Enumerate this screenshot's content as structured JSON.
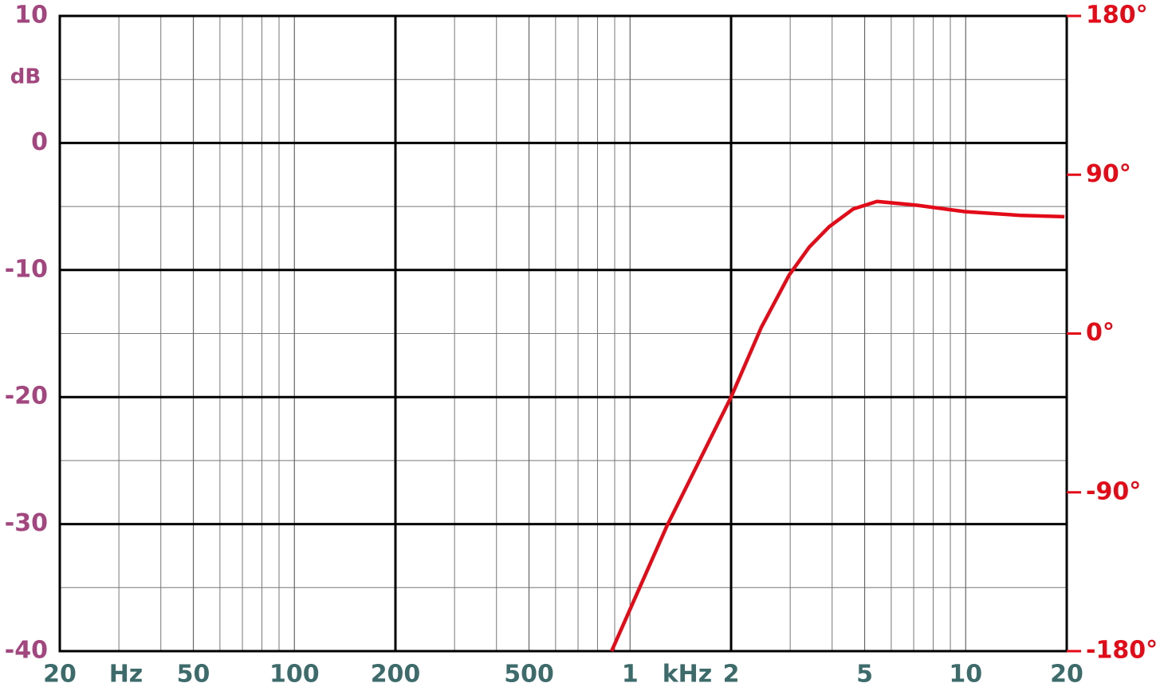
{
  "chart_data": {
    "type": "line",
    "y_label": "dB",
    "x_units": [
      "Hz",
      "kHz"
    ],
    "x": [
      881,
      1285,
      2000,
      2462,
      2978,
      3419,
      3918,
      4619,
      5442,
      7150,
      9920,
      14560,
      19680
    ],
    "values": [
      -40,
      -30.2,
      -20,
      -14.5,
      -10.4,
      -8.2,
      -6.6,
      -5.2,
      -4.6,
      -4.9,
      -5.4,
      -5.7,
      -5.8
    ],
    "color": "#e30b17",
    "log_x": true,
    "xlim": [
      20,
      20000
    ],
    "xticks": [
      20,
      50,
      100,
      200,
      500,
      {
        "value": 1000,
        "label": "1"
      },
      {
        "value": 2000,
        "label": "2"
      },
      {
        "value": 5000,
        "label": "5"
      },
      {
        "value": 10000,
        "label": "10"
      },
      {
        "value": 20000,
        "label": "20"
      }
    ],
    "x_minor_ticks": [
      30,
      40,
      60,
      70,
      80,
      90,
      300,
      400,
      600,
      700,
      800,
      900,
      3000,
      4000,
      6000,
      7000,
      8000,
      9000
    ],
    "x_major_grid": [
      200,
      2000
    ],
    "ylim": [
      -40,
      10
    ],
    "yticks": [
      10,
      0,
      -10,
      -20,
      -30,
      -40
    ],
    "y_minor_ticks": [
      5,
      -5,
      -15,
      -25,
      -35
    ],
    "y2lim": [
      -180,
      180
    ],
    "y2ticks": [
      {
        "value": 180,
        "label": "180°"
      },
      {
        "value": 90,
        "label": "90°"
      },
      {
        "value": 0,
        "label": "0°"
      },
      {
        "value": -90,
        "label": "-90°"
      },
      {
        "value": -180,
        "label": "-180°"
      }
    ],
    "grid": true
  }
}
